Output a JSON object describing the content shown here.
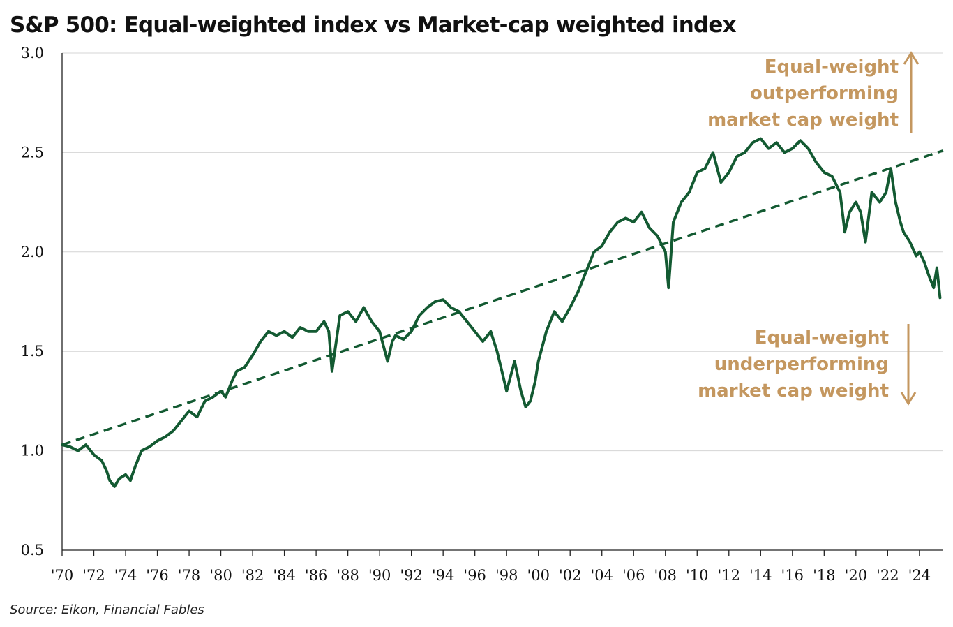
{
  "title": "S&P 500: Equal-weighted index vs Market-cap weighted index",
  "source": "Source: Eikon, Financial Fables",
  "colors": {
    "series": "#135a32",
    "annotation": "#c4975f",
    "grid": "#d4d4d4",
    "axis": "#222222"
  },
  "annotations": {
    "upper": [
      "Equal-weight",
      "outperforming",
      "market cap weight"
    ],
    "lower": [
      "Equal-weight",
      "underperforming",
      "market cap weight"
    ]
  },
  "chart_data": {
    "type": "line",
    "title": "S&P 500: Equal-weighted index vs Market-cap weighted index",
    "xlabel": "",
    "ylabel": "",
    "xlim": [
      1970,
      2025.5
    ],
    "ylim": [
      0.5,
      3.0
    ],
    "y_ticks": [
      0.5,
      1.0,
      1.5,
      2.0,
      2.5,
      3.0
    ],
    "y_tick_labels": [
      "0.5",
      "1.0",
      "1.5",
      "2.0",
      "2.5",
      "3.0"
    ],
    "x_ticks": [
      1970,
      1972,
      1974,
      1976,
      1978,
      1980,
      1982,
      1984,
      1986,
      1988,
      1990,
      1992,
      1994,
      1996,
      1998,
      2000,
      2002,
      2004,
      2006,
      2008,
      2010,
      2012,
      2014,
      2016,
      2018,
      2020,
      2022,
      2024
    ],
    "x_tick_labels": [
      "'70",
      "'72",
      "'74",
      "'76",
      "'78",
      "'80",
      "'82",
      "'84",
      "'86",
      "'88",
      "'90",
      "'92",
      "'94",
      "'96",
      "'98",
      "'00",
      "'02",
      "'04",
      "'06",
      "'08",
      "'10",
      "'12",
      "'14",
      "'16",
      "'18",
      "'20",
      "'22",
      "'24"
    ],
    "grid": "horizontal",
    "series": [
      {
        "style": "solid",
        "x": [
          1970.0,
          1970.5,
          1971.0,
          1971.5,
          1972.0,
          1972.5,
          1972.8,
          1973.0,
          1973.3,
          1973.6,
          1974.0,
          1974.3,
          1974.6,
          1975.0,
          1975.5,
          1976.0,
          1976.5,
          1977.0,
          1977.5,
          1978.0,
          1978.5,
          1979.0,
          1979.5,
          1980.0,
          1980.3,
          1980.7,
          1981.0,
          1981.5,
          1982.0,
          1982.5,
          1983.0,
          1983.5,
          1984.0,
          1984.5,
          1985.0,
          1985.5,
          1986.0,
          1986.5,
          1986.8,
          1987.0,
          1987.5,
          1988.0,
          1988.5,
          1989.0,
          1989.5,
          1990.0,
          1990.5,
          1990.8,
          1991.0,
          1991.5,
          1992.0,
          1992.5,
          1993.0,
          1993.5,
          1994.0,
          1994.5,
          1995.0,
          1995.5,
          1996.0,
          1996.5,
          1997.0,
          1997.4,
          1997.7,
          1998.0,
          1998.5,
          1998.9,
          1999.2,
          1999.5,
          1999.8,
          2000.0,
          2000.5,
          2001.0,
          2001.5,
          2002.0,
          2002.5,
          2003.0,
          2003.5,
          2004.0,
          2004.5,
          2005.0,
          2005.5,
          2006.0,
          2006.5,
          2007.0,
          2007.5,
          2008.0,
          2008.2,
          2008.5,
          2009.0,
          2009.5,
          2010.0,
          2010.5,
          2011.0,
          2011.5,
          2012.0,
          2012.5,
          2013.0,
          2013.5,
          2014.0,
          2014.5,
          2015.0,
          2015.5,
          2016.0,
          2016.5,
          2017.0,
          2017.5,
          2018.0,
          2018.5,
          2019.0,
          2019.3,
          2019.6,
          2020.0,
          2020.3,
          2020.6,
          2021.0,
          2021.5,
          2021.9,
          2022.2,
          2022.5,
          2022.8,
          2023.0,
          2023.4,
          2023.8,
          2024.0,
          2024.3,
          2024.6,
          2024.9,
          2025.1,
          2025.3
        ],
        "y": [
          1.03,
          1.02,
          1.0,
          1.03,
          0.98,
          0.95,
          0.9,
          0.85,
          0.82,
          0.86,
          0.88,
          0.85,
          0.92,
          1.0,
          1.02,
          1.05,
          1.07,
          1.1,
          1.15,
          1.2,
          1.17,
          1.25,
          1.27,
          1.3,
          1.27,
          1.35,
          1.4,
          1.42,
          1.48,
          1.55,
          1.6,
          1.58,
          1.6,
          1.57,
          1.62,
          1.6,
          1.6,
          1.65,
          1.6,
          1.4,
          1.68,
          1.7,
          1.65,
          1.72,
          1.65,
          1.6,
          1.45,
          1.55,
          1.58,
          1.56,
          1.6,
          1.68,
          1.72,
          1.75,
          1.76,
          1.72,
          1.7,
          1.65,
          1.6,
          1.55,
          1.6,
          1.5,
          1.4,
          1.3,
          1.45,
          1.3,
          1.22,
          1.25,
          1.35,
          1.45,
          1.6,
          1.7,
          1.65,
          1.72,
          1.8,
          1.9,
          2.0,
          2.03,
          2.1,
          2.15,
          2.17,
          2.15,
          2.2,
          2.12,
          2.08,
          2.0,
          1.82,
          2.15,
          2.25,
          2.3,
          2.4,
          2.42,
          2.5,
          2.35,
          2.4,
          2.48,
          2.5,
          2.55,
          2.57,
          2.52,
          2.55,
          2.5,
          2.52,
          2.56,
          2.52,
          2.45,
          2.4,
          2.38,
          2.3,
          2.1,
          2.2,
          2.25,
          2.2,
          2.05,
          2.3,
          2.25,
          2.3,
          2.42,
          2.25,
          2.15,
          2.1,
          2.05,
          1.98,
          2.0,
          1.95,
          1.88,
          1.82,
          1.92,
          1.77
        ],
        "color": "#135a32"
      },
      {
        "style": "dashed",
        "x": [
          1970.0,
          2025.5
        ],
        "y": [
          1.03,
          2.51
        ],
        "color": "#135a32"
      }
    ]
  }
}
